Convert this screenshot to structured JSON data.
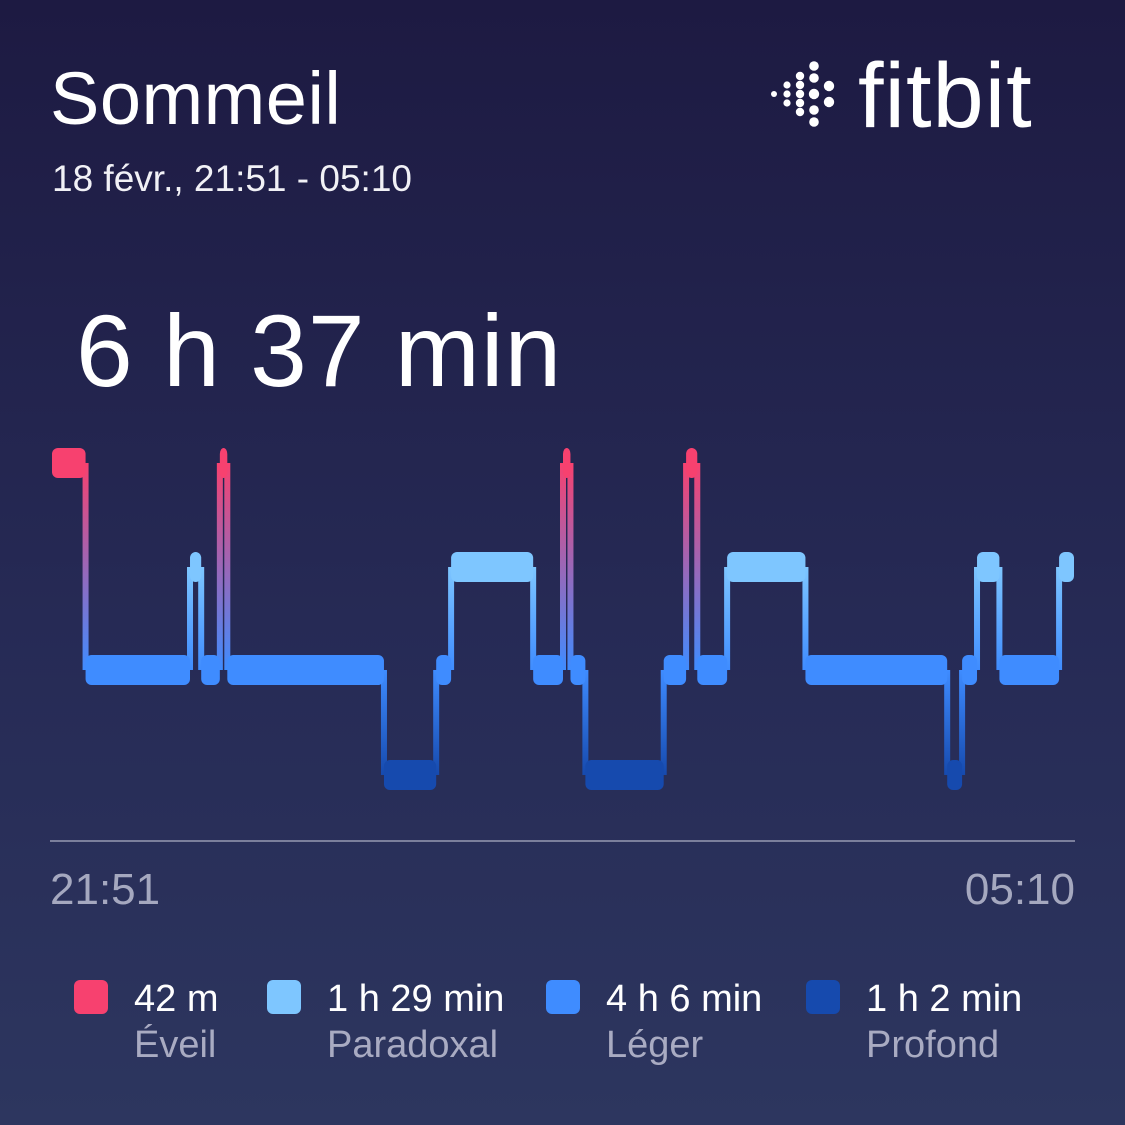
{
  "header": {
    "title": "Sommeil",
    "subtitle": "18 févr., 21:51 - 05:10",
    "logo_text": "fitbit"
  },
  "summary": {
    "total": "6 h 37 min"
  },
  "colors": {
    "eveil": "#f7416f",
    "paradoxal": "#7ec6ff",
    "leger": "#3f8cff",
    "profond": "#164aae",
    "axis": "#7b7f9c"
  },
  "chart_data": {
    "type": "area",
    "x_start": "21:51",
    "x_end": "05:10",
    "stage_order": [
      "Éveil",
      "Paradoxal",
      "Léger",
      "Profond"
    ],
    "stage_keys": [
      "eveil",
      "paradoxal",
      "leger",
      "profond"
    ],
    "segments": [
      {
        "stage": "eveil",
        "start": 0,
        "end": 9
      },
      {
        "stage": "leger",
        "start": 9,
        "end": 37
      },
      {
        "stage": "paradoxal",
        "start": 37,
        "end": 40
      },
      {
        "stage": "leger",
        "start": 40,
        "end": 45
      },
      {
        "stage": "eveil",
        "start": 45,
        "end": 47
      },
      {
        "stage": "leger",
        "start": 47,
        "end": 89
      },
      {
        "stage": "profond",
        "start": 89,
        "end": 103
      },
      {
        "stage": "leger",
        "start": 103,
        "end": 107
      },
      {
        "stage": "paradoxal",
        "start": 107,
        "end": 129
      },
      {
        "stage": "leger",
        "start": 129,
        "end": 137
      },
      {
        "stage": "eveil",
        "start": 137,
        "end": 139
      },
      {
        "stage": "leger",
        "start": 139,
        "end": 143
      },
      {
        "stage": "profond",
        "start": 143,
        "end": 164
      },
      {
        "stage": "leger",
        "start": 164,
        "end": 170
      },
      {
        "stage": "eveil",
        "start": 170,
        "end": 173
      },
      {
        "stage": "leger",
        "start": 173,
        "end": 181
      },
      {
        "stage": "paradoxal",
        "start": 181,
        "end": 202
      },
      {
        "stage": "leger",
        "start": 202,
        "end": 240
      },
      {
        "stage": "profond",
        "start": 240,
        "end": 244
      },
      {
        "stage": "leger",
        "start": 244,
        "end": 248
      },
      {
        "stage": "paradoxal",
        "start": 248,
        "end": 254
      },
      {
        "stage": "leger",
        "start": 254,
        "end": 270
      },
      {
        "stage": "paradoxal",
        "start": 270,
        "end": 274
      }
    ],
    "legend": [
      {
        "key": "eveil",
        "value": "42 m",
        "label": "Éveil"
      },
      {
        "key": "paradoxal",
        "value": "1 h 29 min",
        "label": "Paradoxal"
      },
      {
        "key": "leger",
        "value": "4 h 6 min",
        "label": "Léger"
      },
      {
        "key": "profond",
        "value": "1 h 2 min",
        "label": "Profond"
      }
    ]
  }
}
